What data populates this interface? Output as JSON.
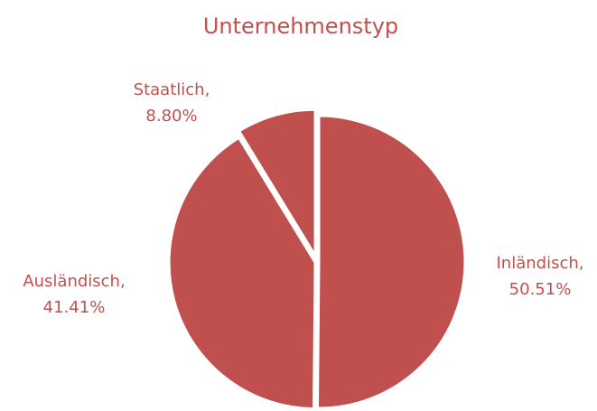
{
  "chart_data": {
    "type": "pie",
    "title": "Unternehmenstyp",
    "categories": [
      "Inländisch,",
      "Ausländisch,",
      "Staatlich,"
    ],
    "values": [
      50.51,
      41.41,
      8.8
    ],
    "value_labels": [
      "50.51%",
      "41.41%",
      "8.80%"
    ],
    "color": "#c0504d"
  }
}
